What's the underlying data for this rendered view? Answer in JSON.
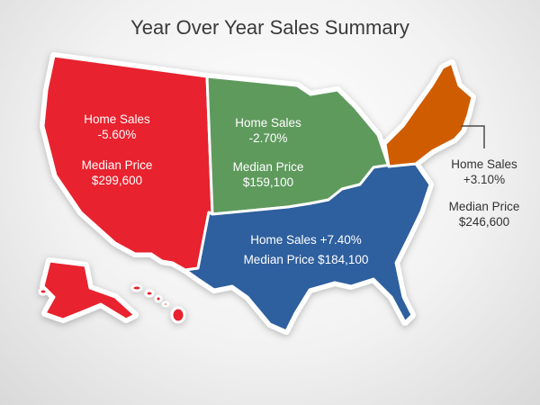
{
  "title": "Year Over Year Sales Summary",
  "colors": {
    "west": "#e8242e",
    "midwest": "#5f9a5d",
    "south": "#2f5f9e",
    "northeast": "#cf5d05",
    "callout_line": "#4a4a4a"
  },
  "regions": {
    "west": {
      "home_sales_label": "Home Sales",
      "home_sales_change": "-5.60%",
      "median_price_label": "Median Price",
      "median_price": "$299,600"
    },
    "midwest": {
      "home_sales_label": "Home Sales",
      "home_sales_change": "-2.70%",
      "median_price_label": "Median Price",
      "median_price": "$159,100"
    },
    "south": {
      "home_sales_label": "Home Sales",
      "home_sales_change": "+7.40%",
      "median_price_label": "Median Price",
      "median_price": "$184,100"
    },
    "northeast": {
      "home_sales_label": "Home Sales",
      "home_sales_change": "+3.10%",
      "median_price_label": "Median Price",
      "median_price": "$246,600"
    }
  }
}
